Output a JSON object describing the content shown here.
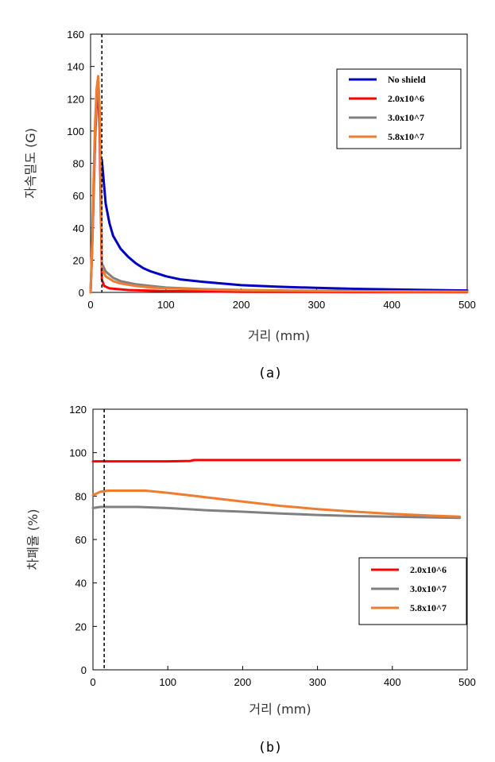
{
  "chart_data": [
    {
      "type": "line",
      "caption": "(a)",
      "xlabel": "거리 (mm)",
      "ylabel": "자속밀도 (G)",
      "xlim": [
        0,
        500
      ],
      "ylim": [
        0,
        160
      ],
      "xticks": [
        0,
        100,
        200,
        300,
        400,
        500
      ],
      "yticks": [
        0,
        20,
        40,
        60,
        80,
        100,
        120,
        140,
        160
      ],
      "marker_line_x": 15,
      "grid": false,
      "legend_position": "top-right",
      "series": [
        {
          "name": "No shield",
          "color": "#0000c0",
          "x": [
            15,
            20,
            25,
            30,
            40,
            50,
            60,
            70,
            80,
            100,
            120,
            150,
            200,
            250,
            300,
            350,
            400,
            450,
            500
          ],
          "y": [
            82,
            55,
            43,
            35,
            27,
            22,
            18,
            15,
            13,
            10,
            8,
            6.5,
            4.5,
            3.5,
            2.8,
            2.2,
            1.8,
            1.5,
            1.2
          ]
        },
        {
          "name": "2.0x10^6",
          "color": "#ff0000",
          "x": [
            0,
            2,
            4,
            6,
            8,
            10,
            12,
            14,
            15,
            18,
            25,
            50,
            100,
            200,
            300,
            400,
            500
          ],
          "y": [
            0,
            25,
            60,
            95,
            118,
            126,
            100,
            40,
            8,
            4,
            2.5,
            1.5,
            0.8,
            0.4,
            0.3,
            0.2,
            0.2
          ]
        },
        {
          "name": "3.0x10^7",
          "color": "#808080",
          "x": [
            0,
            2,
            4,
            6,
            8,
            10,
            12,
            14,
            15,
            20,
            30,
            40,
            60,
            80,
            100,
            150,
            200,
            300,
            400,
            500
          ],
          "y": [
            0,
            28,
            65,
            100,
            122,
            130,
            110,
            55,
            18,
            13,
            9,
            7,
            5,
            4,
            3,
            2,
            1.5,
            1,
            0.7,
            0.5
          ]
        },
        {
          "name": "5.8x10^7",
          "color": "#ed7d31",
          "x": [
            0,
            2,
            4,
            6,
            8,
            10,
            12,
            14,
            15,
            20,
            30,
            40,
            60,
            80,
            100,
            150,
            200,
            300,
            400,
            500
          ],
          "y": [
            0,
            30,
            70,
            105,
            126,
            134,
            115,
            60,
            15,
            10,
            7,
            5.5,
            4,
            3,
            2.5,
            1.8,
            1.3,
            0.9,
            0.6,
            0.5
          ]
        }
      ]
    },
    {
      "type": "line",
      "caption": "(b)",
      "xlabel": "거리 (mm)",
      "ylabel": "차폐율 (%)",
      "xlim": [
        0,
        500
      ],
      "ylim": [
        0,
        120
      ],
      "xticks": [
        0,
        100,
        200,
        300,
        400,
        500
      ],
      "yticks": [
        0,
        20,
        40,
        60,
        80,
        100,
        120
      ],
      "marker_line_x": 15,
      "grid": false,
      "legend_position": "bottom-right",
      "series": [
        {
          "name": "2.0x10^6",
          "color": "#ff0000",
          "x": [
            0,
            50,
            100,
            130,
            135,
            200,
            300,
            400,
            490
          ],
          "y": [
            96,
            96,
            96,
            96.2,
            96.6,
            96.6,
            96.6,
            96.6,
            96.6
          ]
        },
        {
          "name": "3.0x10^7",
          "color": "#808080",
          "x": [
            0,
            10,
            30,
            60,
            100,
            150,
            200,
            250,
            300,
            350,
            400,
            450,
            490
          ],
          "y": [
            74.5,
            75,
            75,
            75,
            74.5,
            73.5,
            72.8,
            72,
            71.3,
            70.8,
            70.5,
            70.2,
            70
          ]
        },
        {
          "name": "5.8x10^7",
          "color": "#ed7d31",
          "x": [
            0,
            10,
            20,
            40,
            70,
            100,
            150,
            200,
            250,
            300,
            350,
            400,
            450,
            490
          ],
          "y": [
            80.5,
            82,
            82.5,
            82.5,
            82.5,
            81.5,
            79.5,
            77.5,
            75.5,
            74,
            72.8,
            71.8,
            71,
            70.5
          ]
        }
      ]
    }
  ]
}
